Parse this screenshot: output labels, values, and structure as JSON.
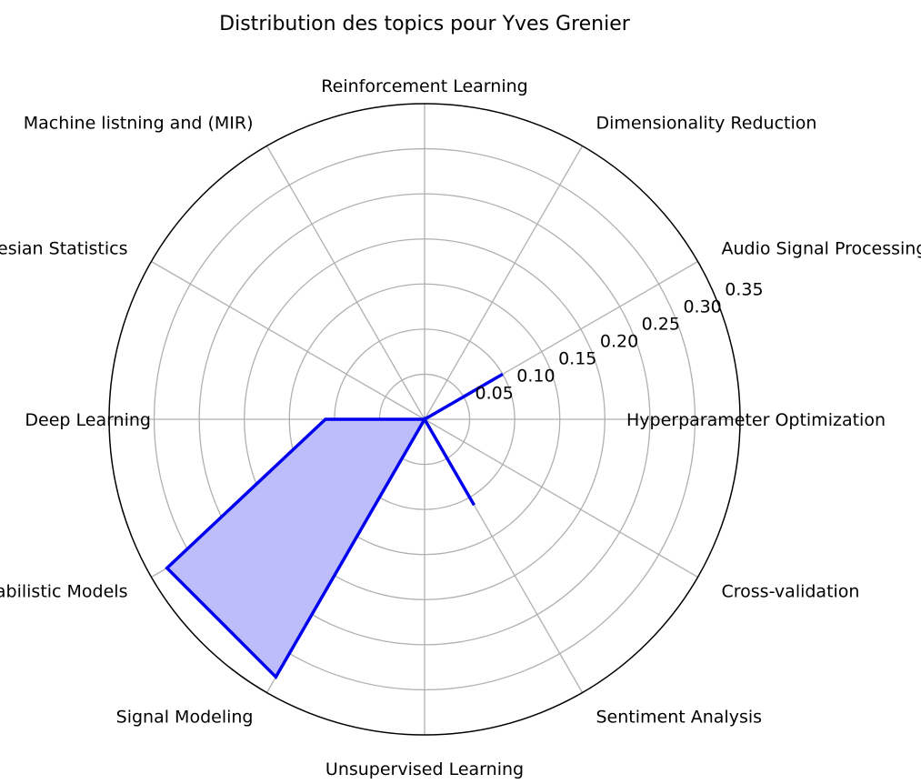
{
  "chart_data": {
    "type": "radar",
    "title": "Distribution des topics pour Yves Grenier",
    "categories": [
      "Hyperparameter Optimization",
      "Audio Signal Processing",
      "Dimensionality Reduction",
      "Reinforcement Learning",
      "Machine listning and (MIR)",
      "Bayesian Statistics",
      "Deep Learning",
      "Probabilistic Models",
      "Signal Modeling",
      "Unsupervised Learning",
      "Sentiment Analysis",
      "Cross-validation"
    ],
    "series": [
      {
        "values": [
          0.0,
          0.1,
          0.0,
          0.0,
          0.0,
          0.0,
          0.11,
          0.33,
          0.33,
          0.0,
          0.11,
          0.0
        ],
        "color": "#0000ee",
        "fill": "#bdbdfc"
      }
    ],
    "rlim": [
      0,
      0.35
    ],
    "rticks": [
      0.05,
      0.1,
      0.15,
      0.2,
      0.25,
      0.3,
      0.35
    ],
    "rtick_labels": [
      "0.05",
      "0.10",
      "0.15",
      "0.20",
      "0.25",
      "0.30",
      "0.35"
    ],
    "grid": true,
    "legend": "none"
  }
}
